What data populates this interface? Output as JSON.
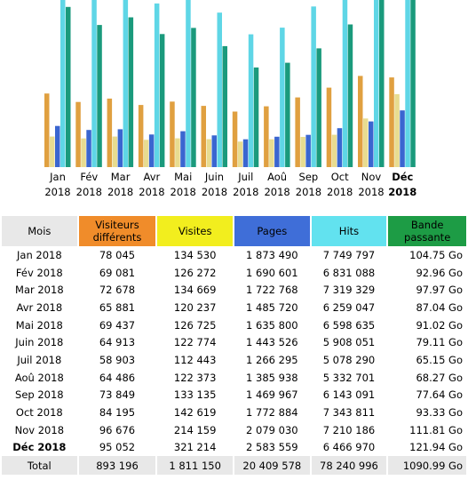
{
  "chart_data": {
    "type": "bar",
    "categories": [
      {
        "month": "Jan",
        "year": "2018"
      },
      {
        "month": "Fév",
        "year": "2018"
      },
      {
        "month": "Mar",
        "year": "2018"
      },
      {
        "month": "Avr",
        "year": "2018"
      },
      {
        "month": "Mai",
        "year": "2018"
      },
      {
        "month": "Juin",
        "year": "2018"
      },
      {
        "month": "Juil",
        "year": "2018"
      },
      {
        "month": "Aoû",
        "year": "2018"
      },
      {
        "month": "Sep",
        "year": "2018"
      },
      {
        "month": "Oct",
        "year": "2018"
      },
      {
        "month": "Nov",
        "year": "2018"
      },
      {
        "month": "Déc",
        "year": "2018",
        "current": true
      }
    ],
    "series": [
      {
        "name": "Visiteurs différents",
        "color": "#e0a040",
        "values": [
          78045,
          69081,
          72678,
          65881,
          69437,
          64913,
          58903,
          64486,
          73849,
          84195,
          96676,
          95052
        ]
      },
      {
        "name": "Visites",
        "color": "#e8dc90",
        "values": [
          134530,
          126272,
          134669,
          120237,
          126725,
          122774,
          112443,
          122373,
          133135,
          142619,
          214159,
          321214
        ]
      },
      {
        "name": "Pages",
        "color": "#3a66d0",
        "values": [
          1873490,
          1690601,
          1722768,
          1485720,
          1635800,
          1443526,
          1266295,
          1385938,
          1469967,
          1772884,
          2079030,
          2583559
        ]
      },
      {
        "name": "Hits",
        "color": "#5fd6e6",
        "values": [
          7749797,
          6831088,
          7319329,
          6259047,
          6598635,
          5908051,
          5078290,
          5332701,
          6143091,
          7343811,
          7210186,
          6466970
        ]
      },
      {
        "name": "Bande passante",
        "color": "#1a9a7c",
        "values": [
          104.75,
          92.96,
          97.97,
          87.04,
          91.02,
          79.11,
          65.15,
          68.27,
          77.64,
          93.33,
          111.81,
          121.94
        ]
      }
    ]
  },
  "table": {
    "headers": {
      "mois": "Mois",
      "visitors": "Visiteurs différents",
      "visits": "Visites",
      "pages": "Pages",
      "hits": "Hits",
      "bandwidth": "Bande passante"
    },
    "rows": [
      {
        "mois": "Jan 2018",
        "visitors": "78 045",
        "visits": "134 530",
        "pages": "1 873 490",
        "hits": "7 749 797",
        "bandwidth": "104.75 Go"
      },
      {
        "mois": "Fév 2018",
        "visitors": "69 081",
        "visits": "126 272",
        "pages": "1 690 601",
        "hits": "6 831 088",
        "bandwidth": "92.96 Go"
      },
      {
        "mois": "Mar 2018",
        "visitors": "72 678",
        "visits": "134 669",
        "pages": "1 722 768",
        "hits": "7 319 329",
        "bandwidth": "97.97 Go"
      },
      {
        "mois": "Avr 2018",
        "visitors": "65 881",
        "visits": "120 237",
        "pages": "1 485 720",
        "hits": "6 259 047",
        "bandwidth": "87.04 Go"
      },
      {
        "mois": "Mai 2018",
        "visitors": "69 437",
        "visits": "126 725",
        "pages": "1 635 800",
        "hits": "6 598 635",
        "bandwidth": "91.02 Go"
      },
      {
        "mois": "Juin 2018",
        "visitors": "64 913",
        "visits": "122 774",
        "pages": "1 443 526",
        "hits": "5 908 051",
        "bandwidth": "79.11 Go"
      },
      {
        "mois": "Juil 2018",
        "visitors": "58 903",
        "visits": "112 443",
        "pages": "1 266 295",
        "hits": "5 078 290",
        "bandwidth": "65.15 Go"
      },
      {
        "mois": "Aoû 2018",
        "visitors": "64 486",
        "visits": "122 373",
        "pages": "1 385 938",
        "hits": "5 332 701",
        "bandwidth": "68.27 Go"
      },
      {
        "mois": "Sep 2018",
        "visitors": "73 849",
        "visits": "133 135",
        "pages": "1 469 967",
        "hits": "6 143 091",
        "bandwidth": "77.64 Go"
      },
      {
        "mois": "Oct 2018",
        "visitors": "84 195",
        "visits": "142 619",
        "pages": "1 772 884",
        "hits": "7 343 811",
        "bandwidth": "93.33 Go"
      },
      {
        "mois": "Nov 2018",
        "visitors": "96 676",
        "visits": "214 159",
        "pages": "2 079 030",
        "hits": "7 210 186",
        "bandwidth": "111.81 Go"
      },
      {
        "mois": "Déc 2018",
        "visitors": "95 052",
        "visits": "321 214",
        "pages": "2 583 559",
        "hits": "6 466 970",
        "bandwidth": "121.94 Go",
        "current": true
      }
    ],
    "total": {
      "mois": "Total",
      "visitors": "893 196",
      "visits": "1 811 150",
      "pages": "20 409 578",
      "hits": "78 240 996",
      "bandwidth": "1090.99 Go"
    }
  }
}
